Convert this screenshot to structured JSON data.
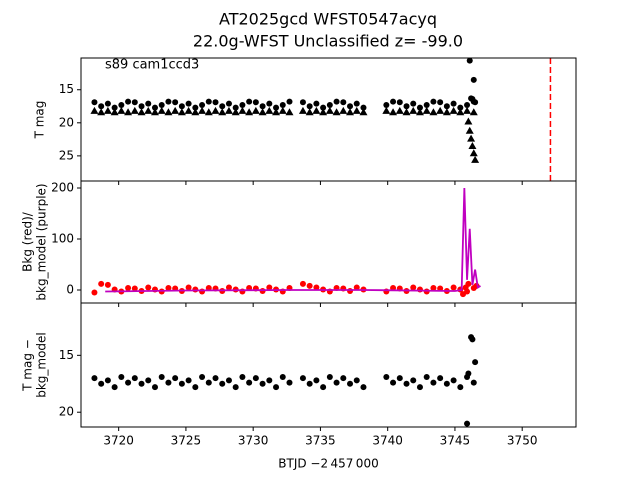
{
  "chart_data": [
    {
      "type": "scatter",
      "title": "AT2025gcd  WFST0547acyq",
      "subtitle": "22.0g-WFST Unclassified z= -99.0",
      "annotation": "s89 cam1ccd3",
      "ylabel": [
        "T mag"
      ],
      "xlim": [
        3717.2,
        3754.0
      ],
      "xticks": [
        3720,
        3725,
        3730,
        3735,
        3740,
        3745,
        3750
      ],
      "ylim": [
        28.8,
        10.2
      ],
      "yticks": [
        15,
        20,
        25
      ],
      "vlines": [
        {
          "x": 3752.1,
          "color": "#ff0000"
        }
      ],
      "series": [
        {
          "marker": "circle",
          "color": "#000000",
          "x": [
            3718.2,
            3718.7,
            3719.2,
            3719.7,
            3720.2,
            3720.7,
            3721.2,
            3721.7,
            3722.2,
            3722.7,
            3723.2,
            3723.7,
            3724.2,
            3724.7,
            3725.2,
            3725.7,
            3726.2,
            3726.7,
            3727.2,
            3727.7,
            3728.2,
            3728.7,
            3729.2,
            3729.7,
            3730.2,
            3730.7,
            3731.2,
            3731.7,
            3732.2,
            3732.7,
            3733.7,
            3734.2,
            3734.7,
            3735.2,
            3735.7,
            3736.2,
            3736.7,
            3737.2,
            3737.7,
            3738.2,
            3739.9,
            3740.4,
            3740.9,
            3741.4,
            3741.9,
            3742.4,
            3742.9,
            3743.4,
            3743.9,
            3744.4,
            3744.9,
            3745.4,
            3745.9,
            3746.4,
            3746.1,
            3746.2,
            3746.3,
            3746.4,
            3746.5
          ],
          "values": [
            16.9,
            17.5,
            17.1,
            17.7,
            17.3,
            16.8,
            16.9,
            17.5,
            17.1,
            17.7,
            17.3,
            16.8,
            16.9,
            17.5,
            17.1,
            17.7,
            17.3,
            16.8,
            16.9,
            17.5,
            17.1,
            17.7,
            17.3,
            16.8,
            16.9,
            17.5,
            17.1,
            17.7,
            17.3,
            16.8,
            16.9,
            17.5,
            17.1,
            17.7,
            17.3,
            16.8,
            16.9,
            17.5,
            17.1,
            17.7,
            17.3,
            16.8,
            16.9,
            17.5,
            17.1,
            17.7,
            17.3,
            16.8,
            16.9,
            17.5,
            17.1,
            17.7,
            17.3,
            16.8,
            10.6,
            16.3,
            16.4,
            13.5,
            16.9
          ]
        },
        {
          "marker": "triangle",
          "color": "#000000",
          "x": [
            3718.2,
            3718.7,
            3719.2,
            3719.7,
            3720.2,
            3720.7,
            3721.2,
            3721.7,
            3722.2,
            3722.7,
            3723.2,
            3723.7,
            3724.2,
            3724.7,
            3725.2,
            3725.7,
            3726.2,
            3726.7,
            3727.2,
            3727.7,
            3728.2,
            3728.7,
            3729.2,
            3729.7,
            3730.2,
            3730.7,
            3731.2,
            3731.7,
            3732.2,
            3732.7,
            3733.7,
            3734.2,
            3734.7,
            3735.2,
            3735.7,
            3736.2,
            3736.7,
            3737.2,
            3737.7,
            3738.2,
            3739.9,
            3740.4,
            3740.9,
            3741.4,
            3741.9,
            3742.4,
            3742.9,
            3743.4,
            3743.9,
            3744.4,
            3744.9,
            3745.4,
            3745.9,
            3746.4,
            3746.0,
            3746.1,
            3746.2,
            3746.3,
            3746.4,
            3746.5
          ],
          "values": [
            18.2,
            18.4,
            18.2,
            18.4,
            18.2,
            18.4,
            18.2,
            18.4,
            18.2,
            18.4,
            18.2,
            18.4,
            18.2,
            18.4,
            18.2,
            18.4,
            18.2,
            18.4,
            18.2,
            18.4,
            18.2,
            18.4,
            18.2,
            18.4,
            18.2,
            18.4,
            18.2,
            18.4,
            18.2,
            18.4,
            18.2,
            18.4,
            18.2,
            18.4,
            18.2,
            18.4,
            18.2,
            18.4,
            18.2,
            18.4,
            18.2,
            18.4,
            18.2,
            18.4,
            18.2,
            18.4,
            18.2,
            18.4,
            18.2,
            18.4,
            18.2,
            18.4,
            18.2,
            18.4,
            19.8,
            21.2,
            22.4,
            23.5,
            24.6,
            25.6
          ]
        }
      ]
    },
    {
      "type": "scatter",
      "ylabel": [
        "Bkg (red)/",
        "bkg_model (purple)"
      ],
      "xlim": [
        3717.2,
        3754.0
      ],
      "xticks": [
        3720,
        3725,
        3730,
        3735,
        3740,
        3745,
        3750
      ],
      "ylim": [
        -25.5,
        213.7
      ],
      "yticks": [
        0,
        100,
        200
      ],
      "series": [
        {
          "marker": "circle",
          "color": "#ff0000",
          "x": [
            3718.2,
            3718.7,
            3719.2,
            3719.7,
            3720.2,
            3720.7,
            3721.2,
            3721.7,
            3722.2,
            3722.7,
            3723.2,
            3723.7,
            3724.2,
            3724.7,
            3725.2,
            3725.7,
            3726.2,
            3726.7,
            3727.2,
            3727.7,
            3728.2,
            3728.7,
            3729.2,
            3729.7,
            3730.2,
            3730.7,
            3731.2,
            3731.7,
            3732.2,
            3732.7,
            3733.7,
            3734.2,
            3734.7,
            3735.2,
            3735.7,
            3736.2,
            3736.7,
            3737.2,
            3737.7,
            3738.2,
            3739.9,
            3740.4,
            3740.9,
            3741.4,
            3741.9,
            3742.4,
            3742.9,
            3743.4,
            3743.9,
            3744.4,
            3744.9,
            3745.4,
            3745.9,
            3746.4,
            3745.6,
            3745.8,
            3746.0,
            3746.6
          ],
          "values": [
            -5,
            12,
            10,
            1,
            -3,
            4,
            3,
            -2,
            5,
            1,
            -3,
            4,
            3,
            -2,
            5,
            1,
            -3,
            4,
            3,
            -2,
            5,
            1,
            -3,
            4,
            3,
            -2,
            5,
            1,
            -3,
            4,
            12,
            8,
            5,
            1,
            -3,
            4,
            3,
            -2,
            5,
            1,
            -3,
            4,
            3,
            -2,
            5,
            1,
            -3,
            4,
            3,
            -2,
            5,
            1,
            -3,
            4,
            -8,
            5,
            12,
            8
          ]
        },
        {
          "marker": "line",
          "color": "#c000c0",
          "x": [
            3719.0,
            3725.0,
            3732.7,
            3738.2,
            3745.0,
            3745.5,
            3745.7,
            3745.9,
            3746.1,
            3746.3,
            3746.5,
            3746.7,
            3746.9
          ],
          "values": [
            -3,
            -1,
            0,
            0,
            -2,
            0,
            200,
            20,
            120,
            10,
            40,
            5,
            8
          ]
        }
      ]
    },
    {
      "type": "scatter",
      "ylabel": [
        "T mag −",
        "bkg_model"
      ],
      "xlabel": "BTJD −2 457 000",
      "xlim": [
        3717.2,
        3754.0
      ],
      "xticks": [
        3720,
        3725,
        3730,
        3735,
        3740,
        3745,
        3750
      ],
      "ylim": [
        21.3,
        10.4
      ],
      "yticks": [
        15,
        20
      ],
      "series": [
        {
          "marker": "circle",
          "color": "#000000",
          "x": [
            3718.2,
            3718.7,
            3719.2,
            3719.7,
            3720.2,
            3720.7,
            3721.2,
            3721.7,
            3722.2,
            3722.7,
            3723.2,
            3723.7,
            3724.2,
            3724.7,
            3725.2,
            3725.7,
            3726.2,
            3726.7,
            3727.2,
            3727.7,
            3728.2,
            3728.7,
            3729.2,
            3729.7,
            3730.2,
            3730.7,
            3731.2,
            3731.7,
            3732.2,
            3732.7,
            3733.7,
            3734.2,
            3734.7,
            3735.2,
            3735.7,
            3736.2,
            3736.7,
            3737.2,
            3737.7,
            3738.2,
            3739.9,
            3740.4,
            3740.9,
            3741.4,
            3741.9,
            3742.4,
            3742.9,
            3743.4,
            3743.9,
            3744.4,
            3744.9,
            3745.4,
            3745.9,
            3746.4,
            3745.9,
            3746.2,
            3746.3,
            3746.5,
            3746.0
          ],
          "values": [
            17.0,
            17.5,
            17.2,
            17.8,
            16.9,
            17.4,
            17.0,
            17.5,
            17.2,
            17.8,
            16.9,
            17.4,
            17.0,
            17.5,
            17.2,
            17.8,
            16.9,
            17.4,
            17.0,
            17.5,
            17.2,
            17.8,
            16.9,
            17.4,
            17.0,
            17.5,
            17.2,
            17.8,
            16.9,
            17.4,
            17.0,
            17.5,
            17.2,
            17.8,
            16.9,
            17.4,
            17.0,
            17.5,
            17.2,
            17.8,
            16.9,
            17.4,
            17.0,
            17.5,
            17.2,
            17.8,
            16.9,
            17.4,
            17.0,
            17.5,
            17.2,
            17.8,
            16.9,
            17.4,
            21.0,
            13.4,
            13.6,
            15.6,
            16.6
          ]
        }
      ]
    }
  ]
}
